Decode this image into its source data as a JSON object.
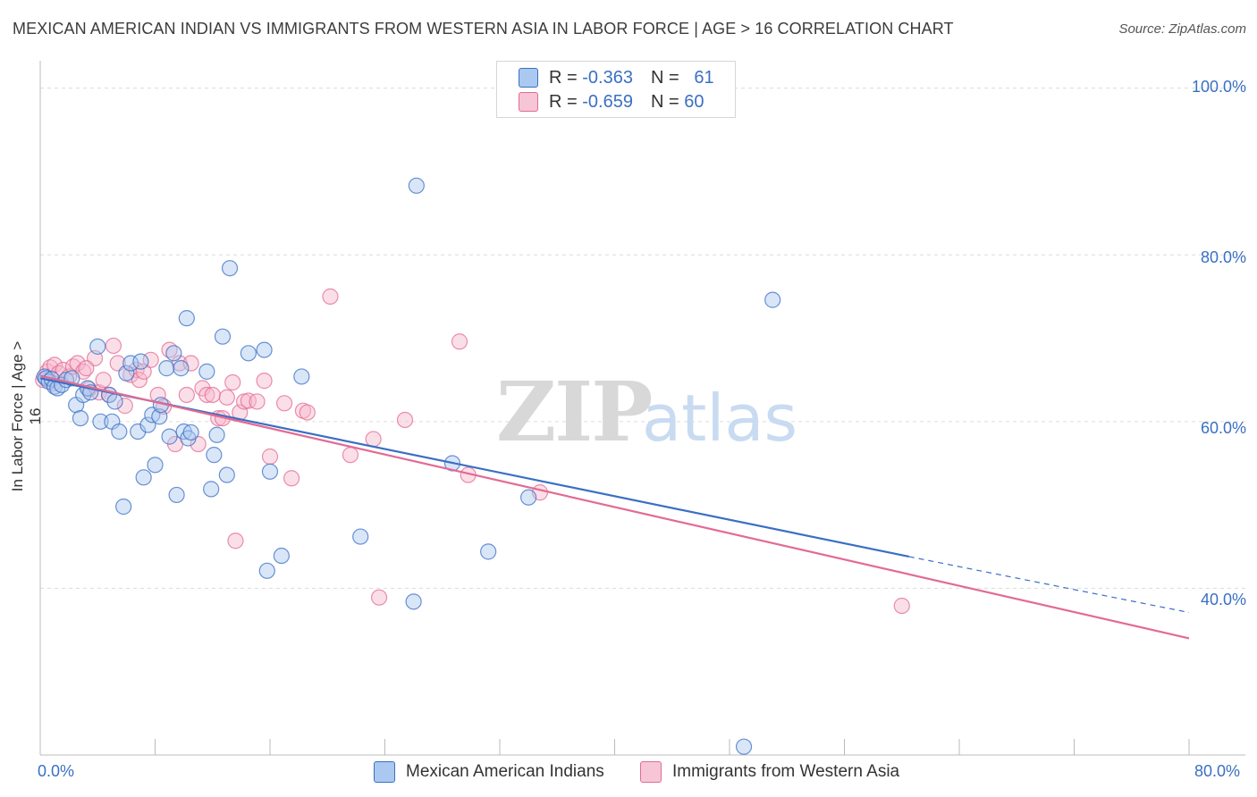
{
  "title": "MEXICAN AMERICAN INDIAN VS IMMIGRANTS FROM WESTERN ASIA IN LABOR FORCE | AGE > 16 CORRELATION CHART",
  "source": "Source: ZipAtlas.com",
  "watermark": {
    "zip": "ZIP",
    "atlas": "atlas"
  },
  "legend": [
    {
      "r_label": "R =",
      "r_value": "-0.363",
      "n_label": "N =",
      "n_value": "61"
    },
    {
      "r_label": "R =",
      "r_value": "-0.659",
      "n_label": "N =",
      "n_value": "60"
    }
  ],
  "colors": {
    "blue": "#3a6fc4",
    "blue_fill": "#aac8f0",
    "pink": "#e36a93",
    "pink_fill": "#f6b8cc"
  },
  "chart_data": {
    "type": "scatter",
    "xlabel": "",
    "ylabel": "In Labor Force | Age > 16",
    "xlim": [
      0,
      80
    ],
    "ylim": [
      20,
      102
    ],
    "x_tick_labels": [
      "0.0%",
      "80.0%"
    ],
    "y_tick_labels": [
      "100.0%",
      "80.0%",
      "60.0%",
      "40.0%"
    ],
    "y_ticks": [
      100,
      80,
      60,
      40
    ],
    "series": [
      {
        "name": "Mexican American Indians",
        "color": "blue",
        "trend": {
          "x0": 0,
          "y0": 65.2,
          "x1": 60.5,
          "y1": 43.8,
          "dash_to_x": 80,
          "dash_to_y": 37.1
        },
        "points": [
          [
            0.3,
            65.4
          ],
          [
            0.4,
            65.2
          ],
          [
            0.6,
            64.8
          ],
          [
            0.8,
            65.1
          ],
          [
            1.0,
            64.2
          ],
          [
            1.2,
            64.0
          ],
          [
            1.5,
            64.4
          ],
          [
            1.8,
            65.0
          ],
          [
            2.5,
            62.0
          ],
          [
            2.8,
            60.4
          ],
          [
            3.0,
            63.2
          ],
          [
            3.3,
            64.0
          ],
          [
            3.5,
            63.5
          ],
          [
            4.0,
            69.0
          ],
          [
            4.2,
            60.0
          ],
          [
            4.8,
            63.2
          ],
          [
            5.0,
            60.0
          ],
          [
            5.2,
            62.4
          ],
          [
            5.5,
            58.8
          ],
          [
            5.8,
            49.8
          ],
          [
            6.0,
            65.8
          ],
          [
            6.3,
            67.0
          ],
          [
            6.8,
            58.8
          ],
          [
            7.0,
            67.2
          ],
          [
            7.2,
            53.3
          ],
          [
            7.5,
            59.6
          ],
          [
            7.8,
            60.8
          ],
          [
            8.0,
            54.8
          ],
          [
            8.3,
            60.6
          ],
          [
            8.4,
            62.0
          ],
          [
            8.8,
            66.4
          ],
          [
            9.0,
            58.2
          ],
          [
            9.3,
            68.2
          ],
          [
            9.5,
            51.2
          ],
          [
            9.8,
            66.4
          ],
          [
            10.0,
            58.8
          ],
          [
            10.3,
            58.0
          ],
          [
            10.5,
            58.7
          ],
          [
            10.2,
            72.4
          ],
          [
            11.6,
            66.0
          ],
          [
            11.9,
            51.9
          ],
          [
            12.1,
            56.0
          ],
          [
            12.3,
            58.4
          ],
          [
            12.7,
            70.2
          ],
          [
            13.0,
            53.6
          ],
          [
            13.2,
            78.4
          ],
          [
            14.5,
            68.2
          ],
          [
            15.6,
            68.6
          ],
          [
            15.8,
            42.1
          ],
          [
            16.0,
            54.0
          ],
          [
            16.8,
            43.9
          ],
          [
            18.2,
            65.4
          ],
          [
            22.3,
            46.2
          ],
          [
            26.2,
            88.3
          ],
          [
            26.0,
            38.4
          ],
          [
            28.7,
            55.0
          ],
          [
            31.2,
            44.4
          ],
          [
            34.0,
            50.9
          ],
          [
            51.0,
            74.6
          ],
          [
            49.0,
            21.0
          ],
          [
            2.2,
            65.2
          ]
        ]
      },
      {
        "name": "Immigrants from Western Asia",
        "color": "pink",
        "trend": {
          "x0": 0,
          "y0": 65.5,
          "x1": 80,
          "y1": 34.0
        },
        "points": [
          [
            0.2,
            65.0
          ],
          [
            0.5,
            66.0
          ],
          [
            0.7,
            66.5
          ],
          [
            1.0,
            66.8
          ],
          [
            1.3,
            65.8
          ],
          [
            1.6,
            66.2
          ],
          [
            2.0,
            65.4
          ],
          [
            2.3,
            66.6
          ],
          [
            2.6,
            67.0
          ],
          [
            3.0,
            66.0
          ],
          [
            3.4,
            63.9
          ],
          [
            3.8,
            67.6
          ],
          [
            4.1,
            63.5
          ],
          [
            4.4,
            65.0
          ],
          [
            4.8,
            63.2
          ],
          [
            5.1,
            69.1
          ],
          [
            5.4,
            67.0
          ],
          [
            5.9,
            61.9
          ],
          [
            6.3,
            65.6
          ],
          [
            6.7,
            66.2
          ],
          [
            6.9,
            65.0
          ],
          [
            7.2,
            66.0
          ],
          [
            7.7,
            67.4
          ],
          [
            8.2,
            63.2
          ],
          [
            8.6,
            61.8
          ],
          [
            9.0,
            68.6
          ],
          [
            9.4,
            57.3
          ],
          [
            9.7,
            67.0
          ],
          [
            10.2,
            63.2
          ],
          [
            10.5,
            67.0
          ],
          [
            11.0,
            57.3
          ],
          [
            11.3,
            64.0
          ],
          [
            11.6,
            63.2
          ],
          [
            12.0,
            63.2
          ],
          [
            12.4,
            60.4
          ],
          [
            12.7,
            60.4
          ],
          [
            13.0,
            62.9
          ],
          [
            13.4,
            64.7
          ],
          [
            13.6,
            45.7
          ],
          [
            13.9,
            61.1
          ],
          [
            14.2,
            62.4
          ],
          [
            14.5,
            62.5
          ],
          [
            15.1,
            62.4
          ],
          [
            15.6,
            64.9
          ],
          [
            16.0,
            55.8
          ],
          [
            17.0,
            62.2
          ],
          [
            17.5,
            53.2
          ],
          [
            18.3,
            61.3
          ],
          [
            18.6,
            61.1
          ],
          [
            20.2,
            75.0
          ],
          [
            21.6,
            56.0
          ],
          [
            23.2,
            57.9
          ],
          [
            23.6,
            38.9
          ],
          [
            25.4,
            60.2
          ],
          [
            29.2,
            69.6
          ],
          [
            29.8,
            53.6
          ],
          [
            34.8,
            51.5
          ],
          [
            60.0,
            37.9
          ],
          [
            3.2,
            66.4
          ],
          [
            0.9,
            64.6
          ]
        ]
      }
    ]
  }
}
